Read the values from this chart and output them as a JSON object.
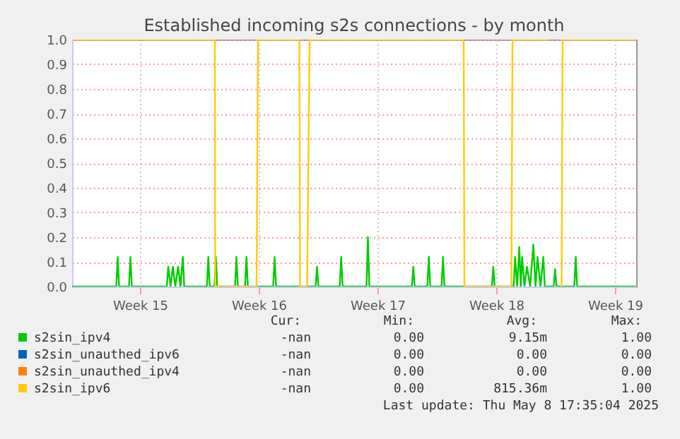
{
  "chart_data": {
    "type": "line",
    "title": "Established incoming s2s connections - by month",
    "xlim": [
      "2025-04-06T12:00",
      "2025-05-09T18:00"
    ],
    "xticks": [
      {
        "value": "2025-04-10T12:00",
        "label": "Week 15"
      },
      {
        "value": "2025-04-17T12:00",
        "label": "Week 16"
      },
      {
        "value": "2025-04-24T12:00",
        "label": "Week 17"
      },
      {
        "value": "2025-05-01T12:00",
        "label": "Week 18"
      },
      {
        "value": "2025-05-08T12:00",
        "label": "Week 19"
      }
    ],
    "ylim": [
      0,
      1
    ],
    "yticks": [
      {
        "value": 0,
        "label": "0.0"
      },
      {
        "value": 0.1,
        "label": "0.1"
      },
      {
        "value": 0.2,
        "label": "0.2"
      },
      {
        "value": 0.3,
        "label": "0.3"
      },
      {
        "value": 0.4,
        "label": "0.4"
      },
      {
        "value": 0.5,
        "label": "0.5"
      },
      {
        "value": 0.6,
        "label": "0.6"
      },
      {
        "value": 0.7,
        "label": "0.7"
      },
      {
        "value": 0.8,
        "label": "0.8"
      },
      {
        "value": 0.9,
        "label": "0.9"
      },
      {
        "value": 1,
        "label": "1.0"
      }
    ],
    "grid": true,
    "legend": "bottom",
    "line_style": "solid",
    "series": [
      {
        "name": "s2sin_ipv4",
        "color": "#00cc00",
        "x": [
          "2025-04-06T12:00",
          "2025-04-09T02:30",
          "2025-04-09T04:30",
          "2025-04-09T06:30",
          "2025-04-09T20:30",
          "2025-04-09T22:30",
          "2025-04-10T00:30",
          "2025-04-12T02:00",
          "2025-04-12T04:00",
          "2025-04-12T07:20",
          "2025-04-12T10:30",
          "2025-04-12T14:00",
          "2025-04-12T18:00",
          "2025-04-12T21:20",
          "2025-04-13T00:40",
          "2025-04-13T02:40",
          "2025-04-14T10:40",
          "2025-04-14T12:40",
          "2025-04-14T14:40",
          "2025-04-14T21:20",
          "2025-04-14T23:20",
          "2025-04-15T01:20",
          "2025-04-16T02:30",
          "2025-04-16T04:30",
          "2025-04-16T06:30",
          "2025-04-16T16:40",
          "2025-04-16T18:40",
          "2025-04-16T20:40",
          "2025-04-18T08:30",
          "2025-04-18T10:30",
          "2025-04-18T12:30",
          "2025-04-20T20:30",
          "2025-04-20T22:30",
          "2025-04-21T00:30",
          "2025-04-22T06:40",
          "2025-04-22T08:40",
          "2025-04-22T10:40",
          "2025-04-23T20:30",
          "2025-04-23T22:30",
          "2025-04-24T00:30",
          "2025-04-26T12:40",
          "2025-04-26T14:40",
          "2025-04-26T16:40",
          "2025-04-27T10:40",
          "2025-04-27T12:40",
          "2025-04-27T14:40",
          "2025-04-28T06:40",
          "2025-04-28T08:40",
          "2025-04-28T10:40",
          "2025-05-01T05:50",
          "2025-05-01T07:50",
          "2025-05-01T09:50",
          "2025-05-02T12:40",
          "2025-05-02T14:40",
          "2025-05-02T17:40",
          "2025-05-02T20:40",
          "2025-05-02T22:40",
          "2025-05-03T00:40",
          "2025-05-03T04:00",
          "2025-05-03T07:30",
          "2025-05-03T12:00",
          "2025-05-03T16:30",
          "2025-05-03T19:30",
          "2025-05-03T22:30",
          "2025-05-04T02:30",
          "2025-05-04T06:40",
          "2025-05-04T08:40",
          "2025-05-04T21:20",
          "2025-05-04T23:20",
          "2025-05-05T01:20",
          "2025-05-06T02:30",
          "2025-05-06T04:30",
          "2025-05-06T06:30",
          "2025-05-09T18:00"
        ],
        "values": [
          0,
          0,
          0.12,
          0,
          0,
          0.12,
          0,
          0,
          0.08,
          0,
          0.08,
          0,
          0.08,
          0,
          0.12,
          0,
          0,
          0.12,
          0,
          0,
          0.12,
          0,
          0,
          0.12,
          0,
          0,
          0.12,
          0,
          0,
          0.12,
          0,
          0,
          0.08,
          0,
          0,
          0.12,
          0,
          0,
          0.2,
          0,
          0,
          0.08,
          0,
          0,
          0.12,
          0,
          0,
          0.12,
          0,
          0,
          0.08,
          0,
          0,
          0.12,
          0,
          0.16,
          0,
          0.12,
          0,
          0.08,
          0,
          0.17,
          0,
          0.12,
          0,
          0.12,
          0,
          0,
          0.07,
          0,
          0,
          0.12,
          0,
          0
        ]
      },
      {
        "name": "s2sin_unauthed_ipv6",
        "color": "#0066b3"
      },
      {
        "name": "s2sin_unauthed_ipv4",
        "color": "#ff8000"
      },
      {
        "name": "s2sin_ipv6",
        "color": "#ffcc00",
        "x": [
          "2025-04-06T12:00",
          "2025-04-14T22:00",
          "2025-04-14T22:30",
          "2025-04-17T09:00",
          "2025-04-17T11:00",
          "2025-04-19T21:30",
          "2025-04-19T22:30",
          "2025-04-20T08:30",
          "2025-04-20T12:00",
          "2025-04-29T14:00",
          "2025-04-29T15:00",
          "2025-05-02T09:30",
          "2025-05-02T11:00",
          "2025-05-04T14:00",
          "2025-05-04T16:50",
          "2025-05-05T08:30",
          "2025-05-05T10:00",
          "2025-05-09T18:00"
        ],
        "values": [
          1,
          1,
          0,
          0,
          1,
          1,
          0,
          0,
          1,
          1,
          0,
          0,
          1,
          1,
          null,
          0,
          1,
          1
        ]
      }
    ],
    "annotations": [
      "Cur:",
      "Min:",
      "Avg:",
      "Max:",
      "-nan",
      "0.00",
      "9.15m",
      "1.00",
      "-nan",
      "0.00",
      "0.00",
      "0.00",
      "-nan",
      "0.00",
      "0.00",
      "0.00",
      "-nan",
      "0.00",
      "815.36m",
      "1.00",
      "Last update: Thu May  8 17:35:04 2025"
    ]
  }
}
